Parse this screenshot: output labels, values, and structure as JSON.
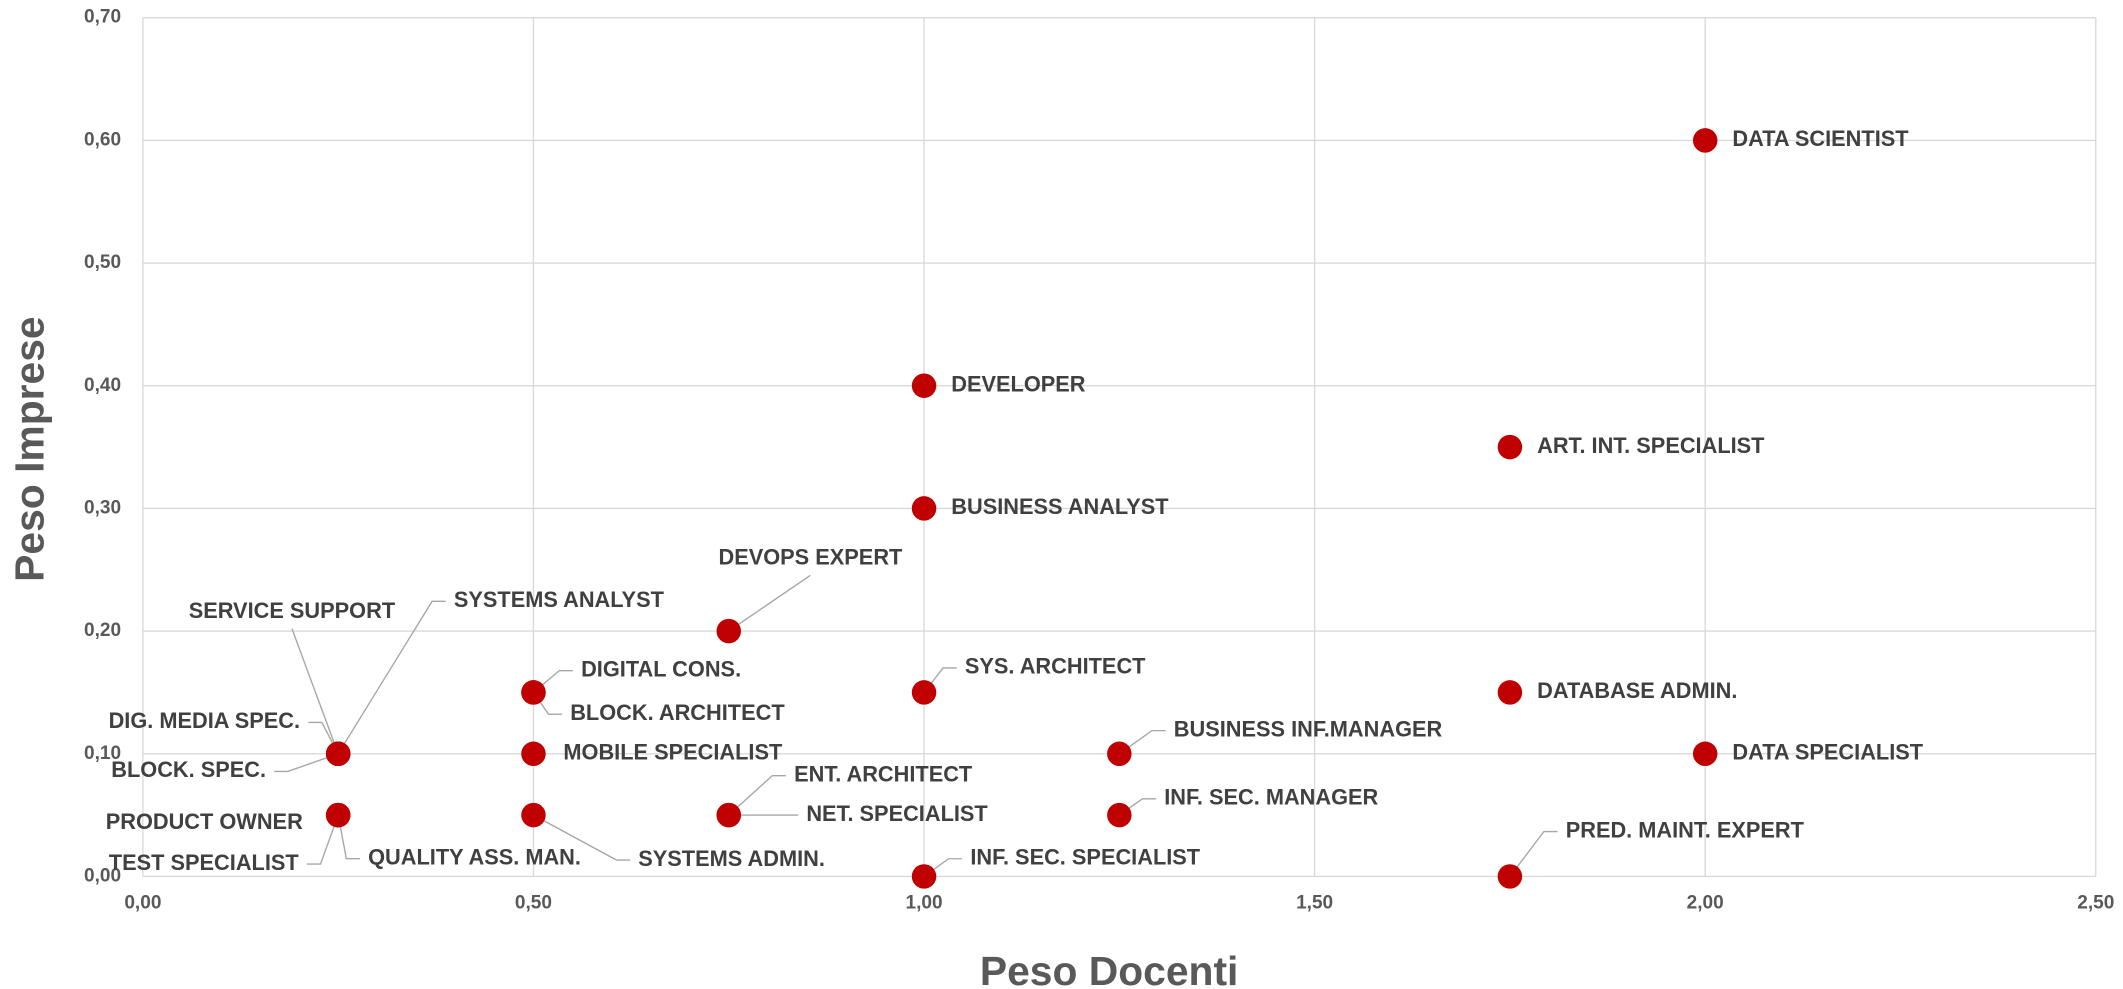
{
  "chart_data": {
    "type": "scatter",
    "xlabel": "Peso Docenti",
    "ylabel": "Peso Imprese",
    "color": "#c00000",
    "grid": true,
    "xlim": [
      0,
      2.5
    ],
    "xticks": [
      {
        "value": 0,
        "label": "0,00"
      },
      {
        "value": 0.5,
        "label": "0,50"
      },
      {
        "value": 1,
        "label": "1,00"
      },
      {
        "value": 1.5,
        "label": "1,50"
      },
      {
        "value": 2,
        "label": "2,00"
      },
      {
        "value": 2.5,
        "label": "2,50"
      }
    ],
    "ylim": [
      0,
      0.7
    ],
    "yticks": [
      {
        "value": 0,
        "label": "0,00"
      },
      {
        "value": 0.1,
        "label": "0,10"
      },
      {
        "value": 0.2,
        "label": "0,20"
      },
      {
        "value": 0.3,
        "label": "0,30"
      },
      {
        "value": 0.4,
        "label": "0,40"
      },
      {
        "value": 0.5,
        "label": "0,50"
      },
      {
        "value": 0.6,
        "label": "0,60"
      },
      {
        "value": 0.7,
        "label": "0,70"
      }
    ],
    "labels": [
      "DATA SCIENTIST",
      "DEVELOPER",
      "ART. INT. SPECIALIST",
      "BUSINESS ANALYST",
      "DEVOPS EXPERT",
      "SERVICE SUPPORT",
      "SYSTEMS ANALYST",
      "DIG. MEDIA SPEC.",
      "BLOCK. SPEC.",
      "DIGITAL CONS.",
      "BLOCK. ARCHITECT",
      "SYS. ARCHITECT",
      "DATABASE ADMIN.",
      "MOBILE SPECIALIST",
      "BUSINESS INF.MANAGER",
      "DATA SPECIALIST",
      "ENT. ARCHITECT",
      "NET. SPECIALIST",
      "INF. SEC. MANAGER",
      "PRODUCT OWNER",
      "TEST SPECIALIST",
      "QUALITY ASS. MAN.",
      "SYSTEMS ADMIN.",
      "INF. SEC. SPECIALIST",
      "PRED. MAINT. EXPERT"
    ],
    "x": [
      2.0,
      1.0,
      1.75,
      1.0,
      0.75,
      0.25,
      0.25,
      0.25,
      0.25,
      0.5,
      0.5,
      1.0,
      1.75,
      0.5,
      1.25,
      2.0,
      0.75,
      0.75,
      1.25,
      0.25,
      0.25,
      0.25,
      0.5,
      1.0,
      1.75
    ],
    "values": [
      0.6,
      0.4,
      0.35,
      0.3,
      0.2,
      0.1,
      0.1,
      0.1,
      0.1,
      0.15,
      0.15,
      0.15,
      0.15,
      0.1,
      0.1,
      0.1,
      0.05,
      0.05,
      0.05,
      0.05,
      0.05,
      0.05,
      0.05,
      0,
      0
    ]
  }
}
